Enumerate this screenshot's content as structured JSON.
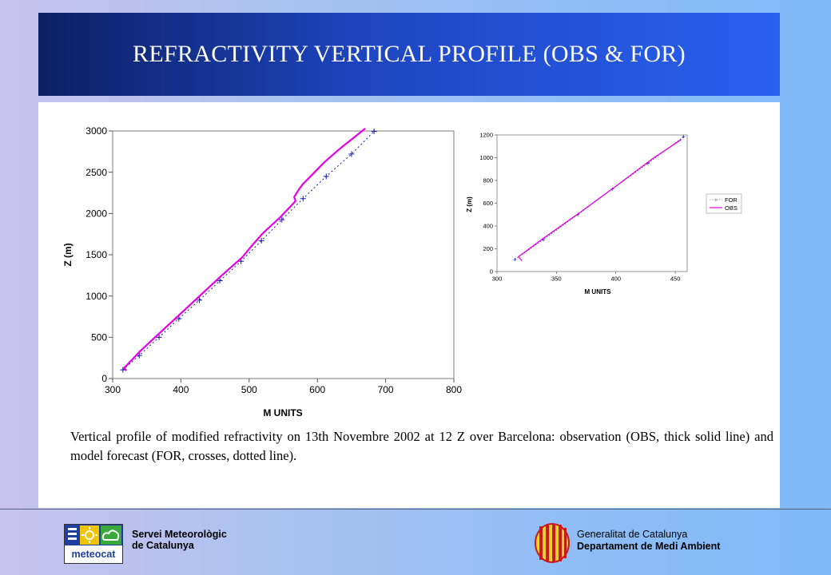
{
  "title": "REFRACTIVITY VERTICAL PROFILE (OBS & FOR)",
  "caption": "Vertical profile of modified refractivity on 13th Novembre 2002 at 12 Z over Barcelona: observation (OBS, thick solid line) and model forecast (FOR, crosses, dotted line).",
  "colors": {
    "obs": "#e600e6",
    "for": "#1a1aa6",
    "title_bg": "#1e46c2"
  },
  "chart_data": [
    {
      "type": "line",
      "xlabel": "M UNITS",
      "ylabel": "Z (m)",
      "xlim": [
        300,
        800
      ],
      "ylim": [
        0,
        3000
      ],
      "xticks": [
        300,
        400,
        500,
        600,
        700,
        800
      ],
      "yticks": [
        0,
        500,
        1000,
        1500,
        2000,
        2500,
        3000
      ],
      "grid": false,
      "series": [
        {
          "name": "FOR",
          "style": "dotted line with crosses",
          "x": [
            315,
            339,
            368,
            397,
            427,
            457,
            488,
            518,
            548,
            579,
            613,
            650,
            683
          ],
          "y": [
            105,
            280,
            500,
            725,
            950,
            1185,
            1420,
            1670,
            1925,
            2180,
            2450,
            2720,
            2995
          ]
        },
        {
          "name": "OBS",
          "style": "thick solid line",
          "x": [
            320,
            317,
            340,
            370,
            400,
            430,
            460,
            490,
            505,
            520,
            545,
            568,
            566,
            572,
            578,
            590,
            610,
            635,
            655,
            670
          ],
          "y": [
            95,
            130,
            330,
            560,
            790,
            1020,
            1250,
            1470,
            1620,
            1760,
            1950,
            2150,
            2200,
            2280,
            2350,
            2450,
            2620,
            2800,
            2930,
            3030
          ]
        }
      ]
    },
    {
      "type": "line",
      "xlabel": "M UNITS",
      "ylabel": "Z (m)",
      "xlim": [
        300,
        460
      ],
      "ylim": [
        0,
        1200
      ],
      "xticks": [
        300,
        350,
        400,
        450
      ],
      "yticks": [
        0,
        200,
        400,
        600,
        800,
        1000,
        1200
      ],
      "grid": false,
      "legend": "right",
      "series": [
        {
          "name": "FOR",
          "style": "dotted line with crosses",
          "x": [
            315,
            339,
            368,
            397,
            427,
            457
          ],
          "y": [
            105,
            280,
            500,
            725,
            950,
            1185
          ]
        },
        {
          "name": "OBS",
          "style": "solid line",
          "x": [
            321,
            318,
            340,
            370,
            400,
            430,
            455
          ],
          "y": [
            95,
            130,
            300,
            520,
            750,
            985,
            1160
          ]
        }
      ]
    }
  ],
  "footer": {
    "logo_text": "meteocat",
    "smc_line1": "Servei Meteorològic",
    "smc_line2": "de Catalunya",
    "gencat_line1": "Generalitat de Catalunya",
    "gencat_line2": "Departament de Medi Ambient"
  }
}
